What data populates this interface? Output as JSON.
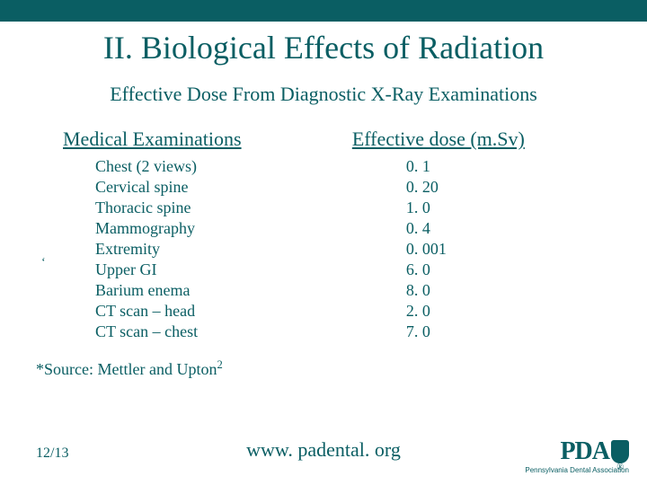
{
  "top_band_color": "#0a5e63",
  "text_color": "#0a5e63",
  "title": "II. Biological Effects of Radiation",
  "subtitle": "Effective Dose From Diagnostic X-Ray Examinations",
  "columns": {
    "left_header": "Medical Examinations",
    "right_header": "Effective dose (m.Sv)",
    "rows": [
      {
        "exam": "Chest (2 views)",
        "dose": "0. 1"
      },
      {
        "exam": "Cervical spine",
        "dose": "0. 20"
      },
      {
        "exam": "Thoracic spine",
        "dose": "1. 0"
      },
      {
        "exam": "Mammography",
        "dose": "0. 4"
      },
      {
        "exam": "Extremity",
        "dose": "0. 001"
      },
      {
        "exam": "Upper GI",
        "dose": "6. 0"
      },
      {
        "exam": "Barium enema",
        "dose": "8. 0"
      },
      {
        "exam": "CT scan – head",
        "dose": "2. 0"
      },
      {
        "exam": "CT scan – chest",
        "dose": "7. 0"
      }
    ]
  },
  "tick_mark": "‘",
  "source_prefix": "*Source: Mettler and Upton",
  "source_sup": "2",
  "footer": {
    "date": "12/13",
    "url": "www. padental. org"
  },
  "logo": {
    "text": "PDA",
    "sub": "Pennsylvania Dental Association",
    "reg": "®"
  }
}
